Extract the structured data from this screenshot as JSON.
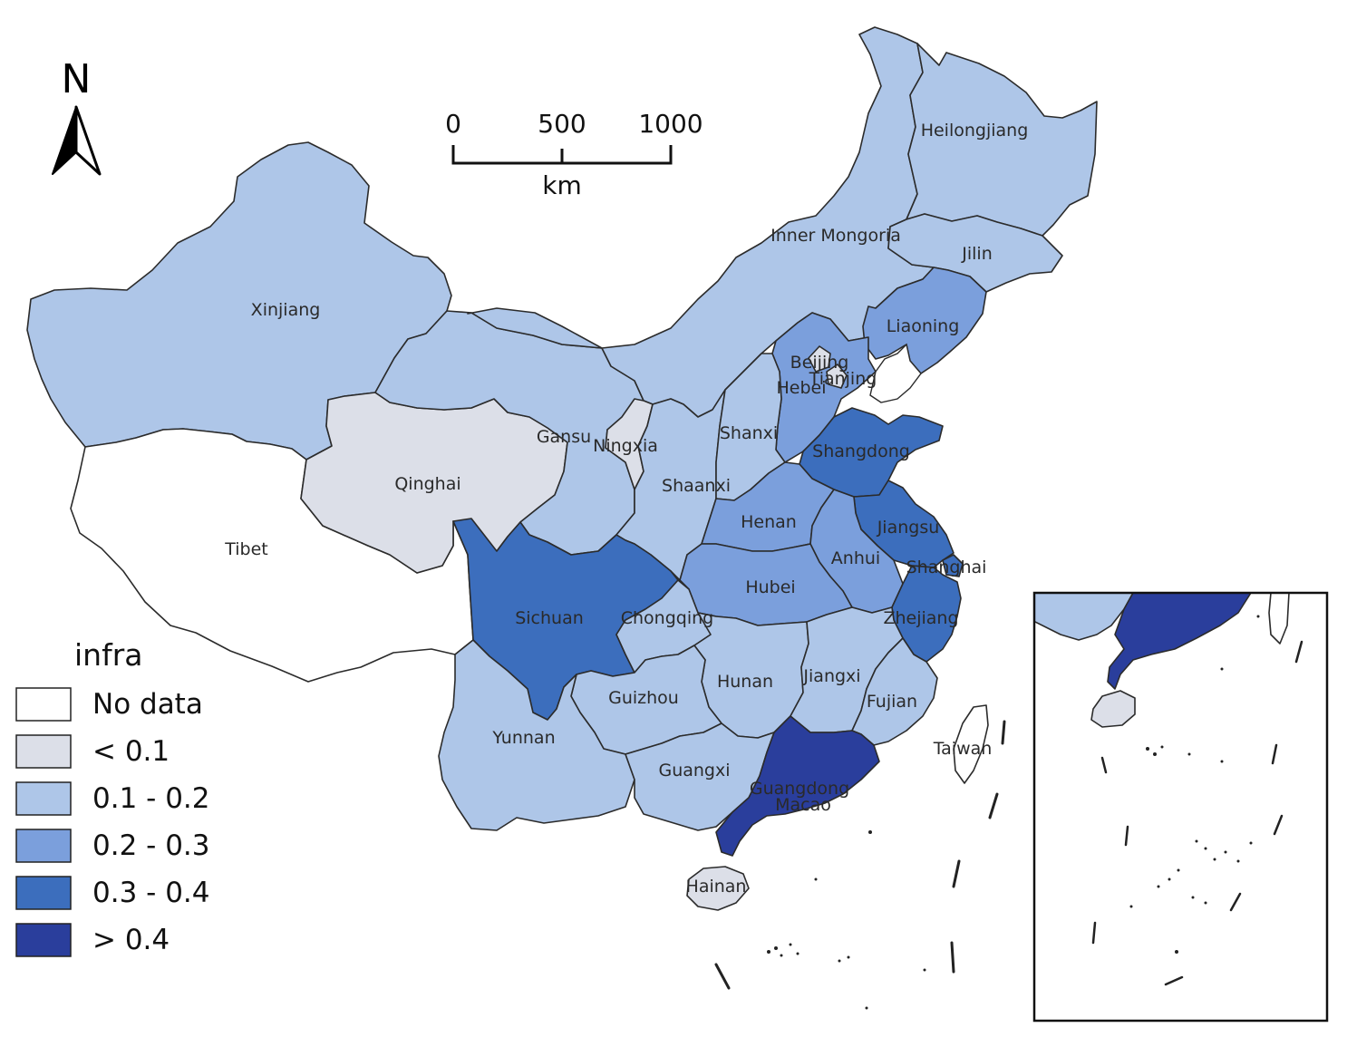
{
  "map": {
    "north_label": "N",
    "scale": {
      "ticks": [
        "0",
        "500",
        "1000"
      ],
      "unit": "km"
    },
    "legend": {
      "title": "infra",
      "classes": [
        {
          "label": "No data",
          "color": "#ffffff"
        },
        {
          "label": "< 0.1",
          "color": "#dcdfe8"
        },
        {
          "label": "0.1 - 0.2",
          "color": "#aec6e8"
        },
        {
          "label": "0.2 - 0.3",
          "color": "#7b9fdc"
        },
        {
          "label": "0.3 - 0.4",
          "color": "#3c6ebd"
        },
        {
          "label": "> 0.4",
          "color": "#2a3e9c"
        }
      ]
    },
    "provinces": [
      {
        "name": "Xinjiang",
        "class": "0.1 - 0.2"
      },
      {
        "name": "Tibet",
        "class": "No data"
      },
      {
        "name": "Qinghai",
        "class": "< 0.1"
      },
      {
        "name": "Gansu",
        "class": "0.1 - 0.2"
      },
      {
        "name": "Inner Mongoria",
        "class": "0.1 - 0.2"
      },
      {
        "name": "Heilongjiang",
        "class": "0.1 - 0.2"
      },
      {
        "name": "Jilin",
        "class": "0.1 - 0.2"
      },
      {
        "name": "Liaoning",
        "class": "0.2 - 0.3"
      },
      {
        "name": "Beijing",
        "class": "< 0.1"
      },
      {
        "name": "Tianjing",
        "class": "< 0.1"
      },
      {
        "name": "Hebei",
        "class": "0.2 - 0.3"
      },
      {
        "name": "Ningxia",
        "class": "< 0.1"
      },
      {
        "name": "Shanxi",
        "class": "0.1 - 0.2"
      },
      {
        "name": "Shaanxi",
        "class": "0.1 - 0.2"
      },
      {
        "name": "Shangdong",
        "class": "0.3 - 0.4"
      },
      {
        "name": "Henan",
        "class": "0.2 - 0.3"
      },
      {
        "name": "Jiangsu",
        "class": "0.3 - 0.4"
      },
      {
        "name": "Anhui",
        "class": "0.2 - 0.3"
      },
      {
        "name": "Shanghai",
        "class": "0.3 - 0.4"
      },
      {
        "name": "Hubei",
        "class": "0.2 - 0.3"
      },
      {
        "name": "Sichuan",
        "class": "0.3 - 0.4"
      },
      {
        "name": "Chongqing",
        "class": "0.1 - 0.2"
      },
      {
        "name": "Zhejiang",
        "class": "0.3 - 0.4"
      },
      {
        "name": "Hunan",
        "class": "0.1 - 0.2"
      },
      {
        "name": "Jiangxi",
        "class": "0.1 - 0.2"
      },
      {
        "name": "Guizhou",
        "class": "0.1 - 0.2"
      },
      {
        "name": "Fujian",
        "class": "0.1 - 0.2"
      },
      {
        "name": "Yunnan",
        "class": "0.1 - 0.2"
      },
      {
        "name": "Guangxi",
        "class": "0.1 - 0.2"
      },
      {
        "name": "Guangdong",
        "class": "> 0.4"
      },
      {
        "name": "Macao",
        "class": "> 0.4"
      },
      {
        "name": "Taiwan",
        "class": "No data"
      },
      {
        "name": "Hainan",
        "class": "< 0.1"
      }
    ]
  }
}
